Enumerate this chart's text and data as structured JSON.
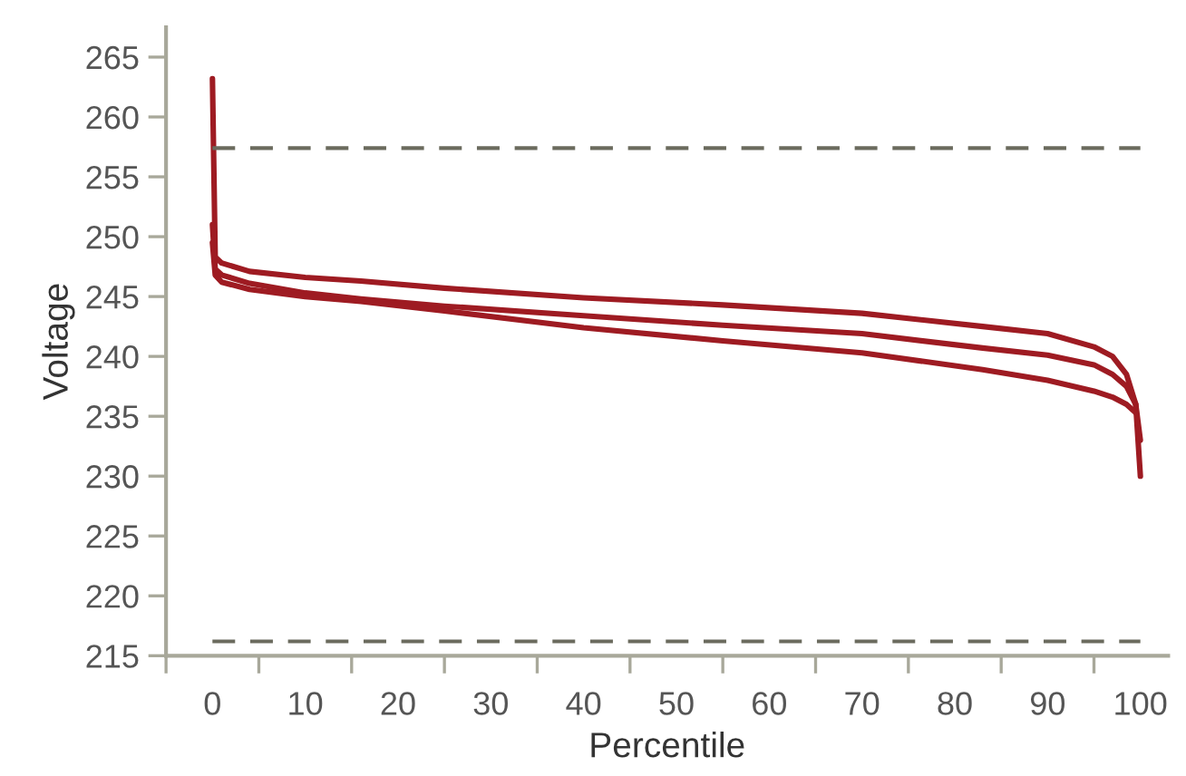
{
  "chart_data": {
    "type": "line",
    "xlabel": "Percentile",
    "ylabel": "Voltage",
    "x": [
      0,
      0.3,
      1,
      4,
      10,
      16,
      25,
      40,
      55,
      70,
      83,
      90,
      95,
      97,
      98.5,
      99.5,
      100
    ],
    "series": [
      {
        "color": "#9e1b22",
        "values": [
          263.2,
          248.3,
          247.8,
          247.1,
          246.6,
          246.3,
          245.7,
          244.9,
          244.3,
          243.6,
          242.5,
          241.9,
          240.8,
          240,
          238.5,
          236,
          230
        ]
      },
      {
        "color": "#9e1b22",
        "values": [
          251,
          247.3,
          246.8,
          246.1,
          245.3,
          244.8,
          244.2,
          243.4,
          242.6,
          241.9,
          240.7,
          240.1,
          239.3,
          238.5,
          237.5,
          236,
          233
        ]
      },
      {
        "color": "#9e1b22",
        "values": [
          249.5,
          246.8,
          246.2,
          245.6,
          245.0,
          244.6,
          243.8,
          242.4,
          241.3,
          240.3,
          238.9,
          238.0,
          237.1,
          236.6,
          236,
          235.3,
          null
        ]
      }
    ],
    "xlim": [
      -5,
      103
    ],
    "ylim": [
      215,
      267.5
    ],
    "xticks": [
      {
        "value": -5,
        "label": null
      },
      0,
      {
        "value": 5,
        "label": null
      },
      10,
      {
        "value": 15,
        "label": null
      },
      20,
      {
        "value": 25,
        "label": null
      },
      30,
      {
        "value": 35,
        "label": null
      },
      40,
      {
        "value": 45,
        "label": null
      },
      50,
      {
        "value": 55,
        "label": null
      },
      60,
      {
        "value": 65,
        "label": null
      },
      70,
      {
        "value": 75,
        "label": null
      },
      80,
      {
        "value": 85,
        "label": null
      },
      90,
      {
        "value": 95,
        "label": null
      },
      100
    ],
    "yticks": [
      215,
      220,
      225,
      230,
      235,
      240,
      245,
      250,
      255,
      260,
      265
    ],
    "ref_lines": [
      {
        "axis": "y",
        "value": 257.4,
        "color": "#6b6b5e",
        "line_style": "dashed"
      },
      {
        "axis": "y",
        "value": 216.2,
        "color": "#6b6b5e",
        "line_style": "dashed"
      }
    ],
    "grid": false,
    "legend": false,
    "marker": "none",
    "line_style": "solid"
  }
}
